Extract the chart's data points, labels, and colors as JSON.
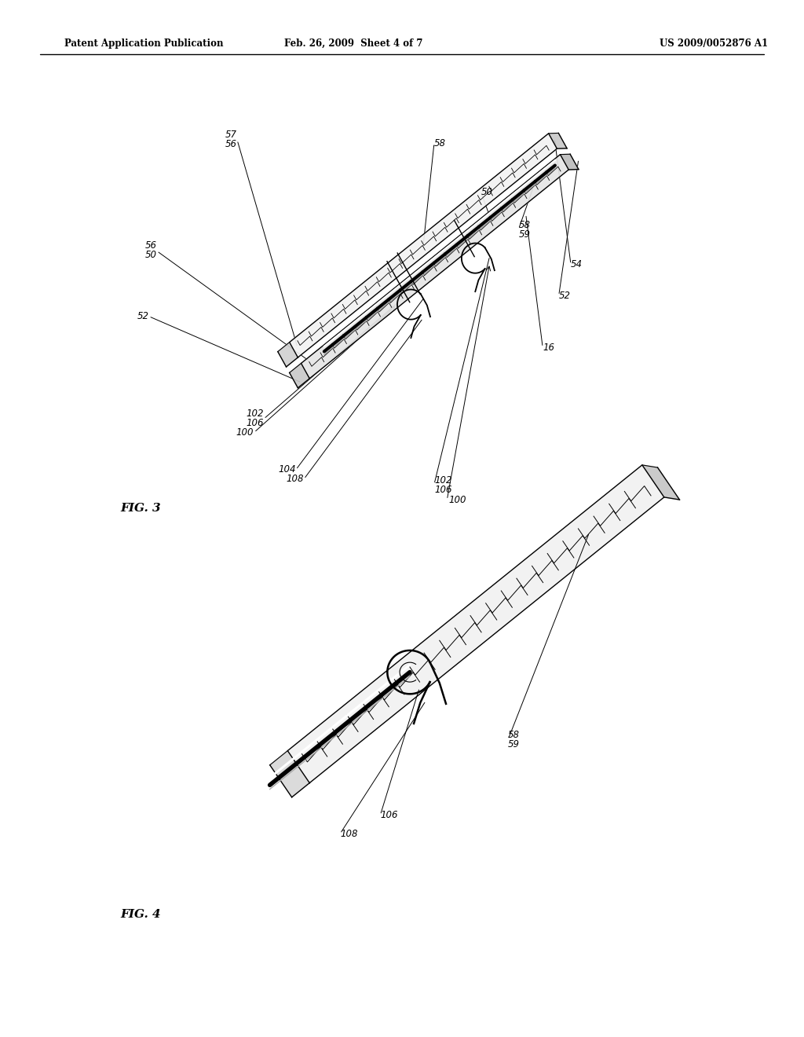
{
  "bg_color": "#ffffff",
  "header_left": "Patent Application Publication",
  "header_mid": "Feb. 26, 2009  Sheet 4 of 7",
  "header_right": "US 2009/0052876 A1",
  "fig3_label": "FIG. 3",
  "fig4_label": "FIG. 4"
}
